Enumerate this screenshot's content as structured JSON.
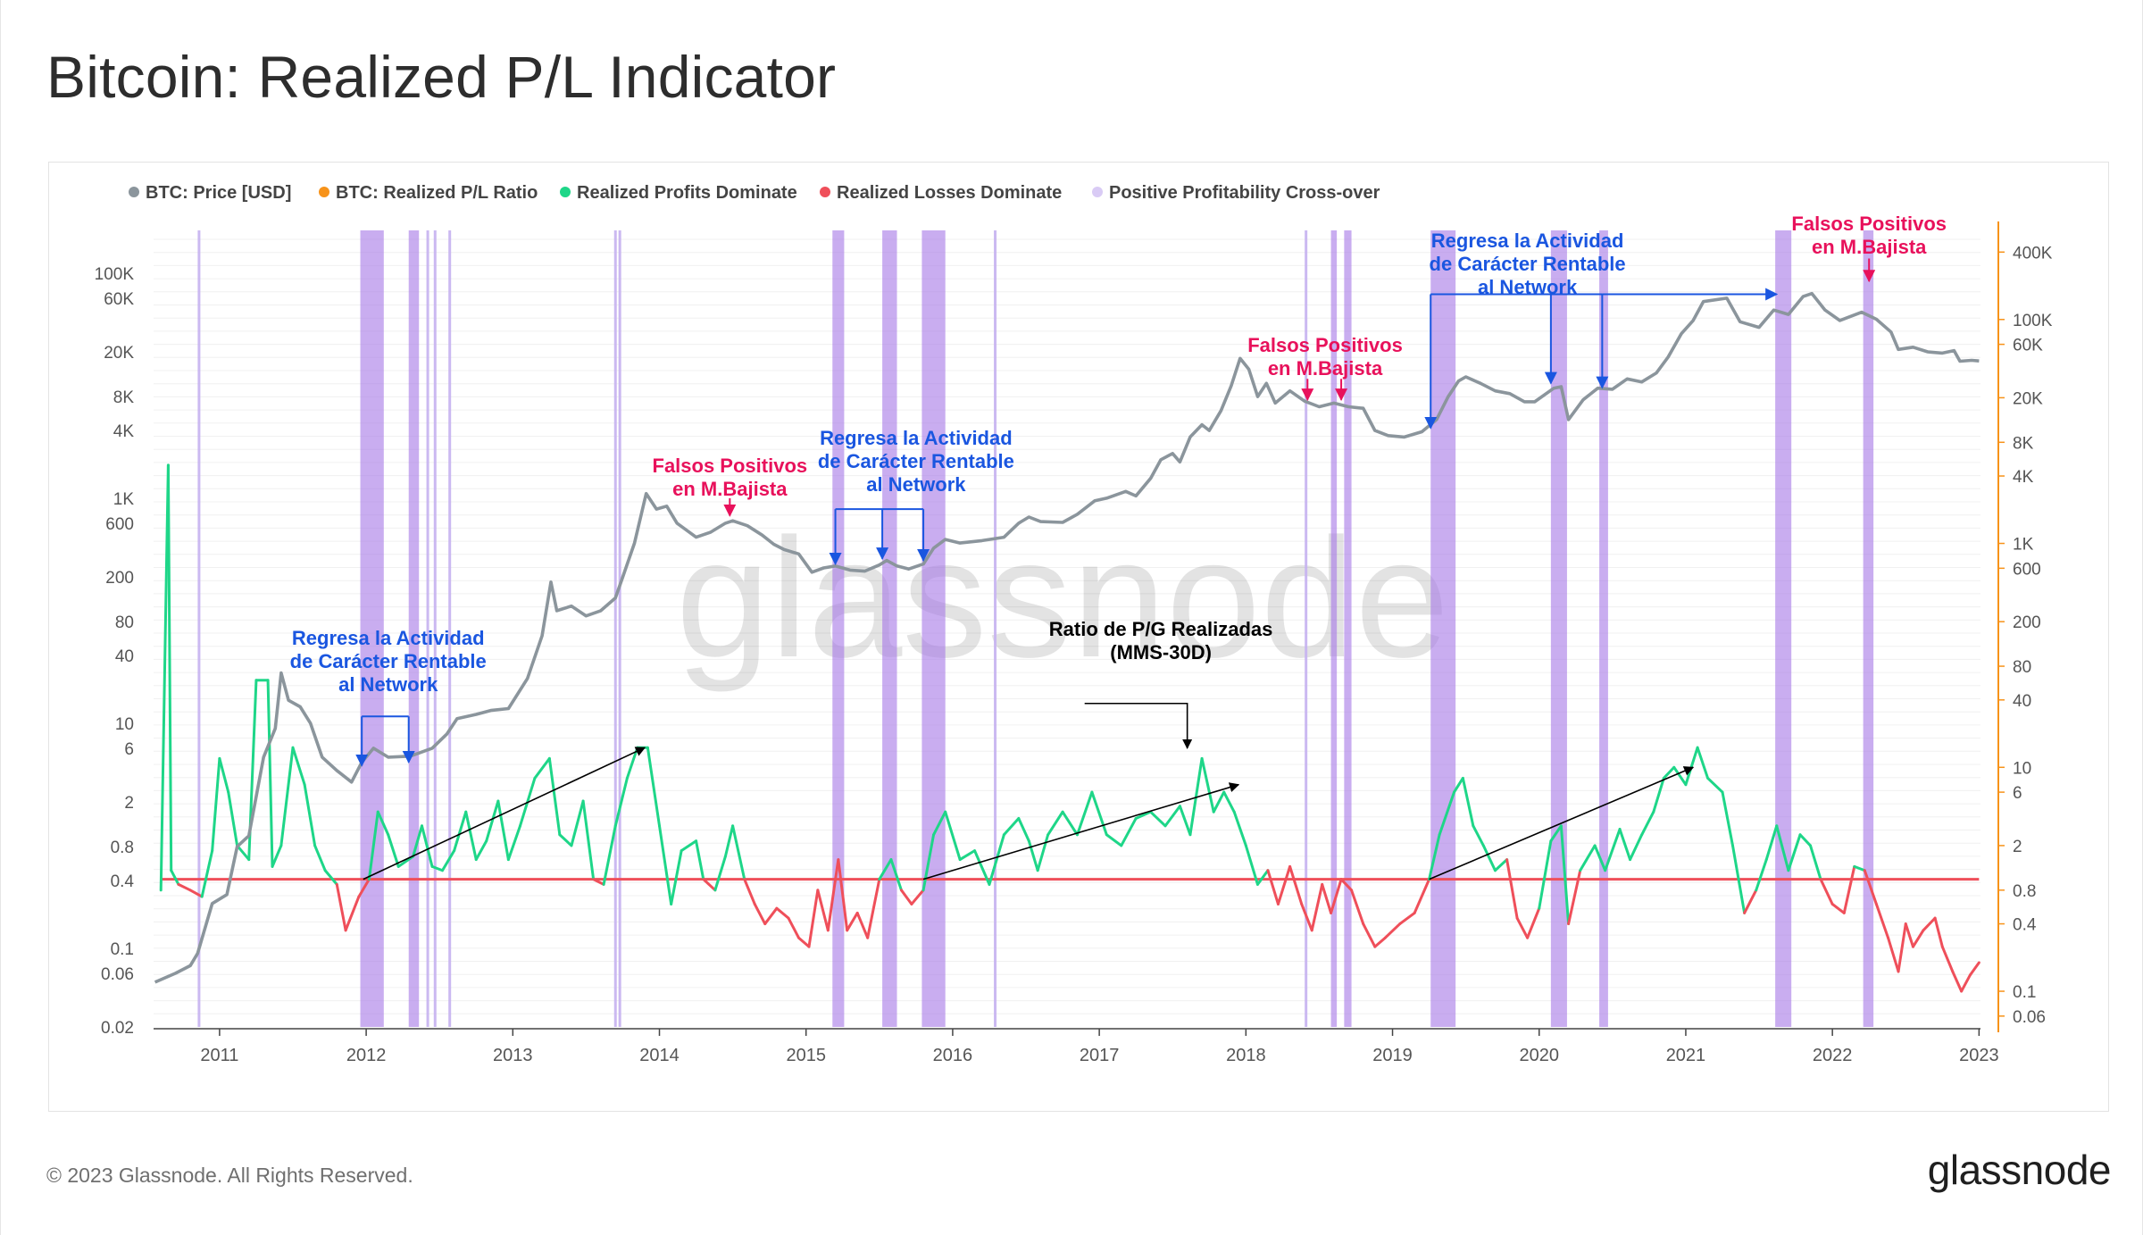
{
  "title": "Bitcoin: Realized P/L Indicator",
  "footer": {
    "copyright": "© 2023 Glassnode. All Rights Reserved.",
    "brand": "glassnode"
  },
  "watermark": "glassnode",
  "colors": {
    "price": "#8b959c",
    "ratio": "#f7931a",
    "profits": "#1ed688",
    "losses": "#ef4f5a",
    "crossover": "#c5b1f0",
    "crossover_band": "#a87be6",
    "breakeven": "#ef4f5a",
    "blue_note": "#1a56e0",
    "red_note": "#e8115b"
  },
  "chart_data": {
    "type": "line",
    "legend": [
      {
        "label": "BTC: Price [USD]",
        "color": "#8b959c"
      },
      {
        "label": "BTC: Realized P/L Ratio",
        "color": "#f7931a"
      },
      {
        "label": "Realized Profits Dominate",
        "color": "#1ed688"
      },
      {
        "label": "Realized Losses Dominate",
        "color": "#ef4f5a"
      },
      {
        "label": "Positive Profitability Cross-over",
        "color": "#d9cbf5"
      }
    ],
    "x_ticks": [
      "2011",
      "2012",
      "2013",
      "2014",
      "2015",
      "2016",
      "2017",
      "2018",
      "2019",
      "2020",
      "2021",
      "2022",
      "2023"
    ],
    "x_range": [
      2010.55,
      2023.01
    ],
    "left_axis": {
      "scale": "log",
      "range": [
        0.02,
        200000
      ],
      "ticks": [
        [
          "100K",
          100000
        ],
        [
          "60K",
          60000
        ],
        [
          "20K",
          20000
        ],
        [
          "8K",
          8000
        ],
        [
          "4K",
          4000
        ],
        [
          "1K",
          1000
        ],
        [
          "600",
          600
        ],
        [
          "200",
          200
        ],
        [
          "80",
          80
        ],
        [
          "40",
          40
        ],
        [
          "10",
          10
        ],
        [
          "6",
          6
        ],
        [
          "2",
          2
        ],
        [
          "0.8",
          0.8
        ],
        [
          "0.4",
          0.4
        ],
        [
          "0.1",
          0.1
        ],
        [
          "0.06",
          0.06
        ],
        [
          "0.02",
          0.02
        ]
      ]
    },
    "right_axis": {
      "scale": "log",
      "range": [
        0.048,
        520000
      ],
      "ticks": [
        [
          "400K",
          400000
        ],
        [
          "100K",
          100000
        ],
        [
          "60K",
          60000
        ],
        [
          "20K",
          20000
        ],
        [
          "8K",
          8000
        ],
        [
          "4K",
          4000
        ],
        [
          "1K",
          1000
        ],
        [
          "600",
          600
        ],
        [
          "200",
          200
        ],
        [
          "80",
          80
        ],
        [
          "40",
          40
        ],
        [
          "10",
          10
        ],
        [
          "6",
          6
        ],
        [
          "2",
          2
        ],
        [
          "0.8",
          0.8
        ],
        [
          "0.4",
          0.4
        ],
        [
          "0.1",
          0.1
        ],
        [
          "0.06",
          0.06
        ]
      ]
    },
    "breakeven_ratio": 1,
    "price_series": [
      [
        2010.56,
        0.05
      ],
      [
        2010.7,
        0.06
      ],
      [
        2010.8,
        0.07
      ],
      [
        2010.85,
        0.09
      ],
      [
        2010.95,
        0.25
      ],
      [
        2011.05,
        0.3
      ],
      [
        2011.12,
        0.8
      ],
      [
        2011.2,
        1
      ],
      [
        2011.3,
        5
      ],
      [
        2011.38,
        9
      ],
      [
        2011.42,
        28
      ],
      [
        2011.47,
        16
      ],
      [
        2011.55,
        14
      ],
      [
        2011.62,
        10
      ],
      [
        2011.7,
        5
      ],
      [
        2011.8,
        3.8
      ],
      [
        2011.9,
        3
      ],
      [
        2011.97,
        4.5
      ],
      [
        2012.05,
        6
      ],
      [
        2012.15,
        5
      ],
      [
        2012.3,
        5.1
      ],
      [
        2012.45,
        6
      ],
      [
        2012.55,
        8
      ],
      [
        2012.62,
        11
      ],
      [
        2012.75,
        12
      ],
      [
        2012.85,
        13
      ],
      [
        2012.97,
        13.5
      ],
      [
        2013.1,
        25
      ],
      [
        2013.2,
        60
      ],
      [
        2013.26,
        180
      ],
      [
        2013.3,
        100
      ],
      [
        2013.4,
        110
      ],
      [
        2013.5,
        90
      ],
      [
        2013.6,
        100
      ],
      [
        2013.7,
        130
      ],
      [
        2013.75,
        200
      ],
      [
        2013.83,
        400
      ],
      [
        2013.91,
        1100
      ],
      [
        2013.98,
        800
      ],
      [
        2014.05,
        850
      ],
      [
        2014.12,
        600
      ],
      [
        2014.25,
        450
      ],
      [
        2014.35,
        500
      ],
      [
        2014.45,
        600
      ],
      [
        2014.5,
        630
      ],
      [
        2014.6,
        570
      ],
      [
        2014.7,
        470
      ],
      [
        2014.78,
        390
      ],
      [
        2014.85,
        350
      ],
      [
        2014.95,
        320
      ],
      [
        2015.04,
        220
      ],
      [
        2015.12,
        240
      ],
      [
        2015.2,
        250
      ],
      [
        2015.3,
        230
      ],
      [
        2015.4,
        225
      ],
      [
        2015.5,
        255
      ],
      [
        2015.55,
        280
      ],
      [
        2015.62,
        250
      ],
      [
        2015.7,
        235
      ],
      [
        2015.8,
        260
      ],
      [
        2015.87,
        360
      ],
      [
        2015.95,
        430
      ],
      [
        2016.05,
        400
      ],
      [
        2016.2,
        420
      ],
      [
        2016.35,
        450
      ],
      [
        2016.45,
        600
      ],
      [
        2016.52,
        680
      ],
      [
        2016.6,
        620
      ],
      [
        2016.75,
        610
      ],
      [
        2016.85,
        720
      ],
      [
        2016.97,
        950
      ],
      [
        2017.05,
        1000
      ],
      [
        2017.18,
        1150
      ],
      [
        2017.25,
        1050
      ],
      [
        2017.35,
        1500
      ],
      [
        2017.42,
        2200
      ],
      [
        2017.5,
        2500
      ],
      [
        2017.55,
        2100
      ],
      [
        2017.62,
        3500
      ],
      [
        2017.7,
        4500
      ],
      [
        2017.75,
        4000
      ],
      [
        2017.83,
        6000
      ],
      [
        2017.9,
        10000
      ],
      [
        2017.96,
        17500
      ],
      [
        2018.02,
        14000
      ],
      [
        2018.08,
        8000
      ],
      [
        2018.14,
        10500
      ],
      [
        2018.2,
        7000
      ],
      [
        2018.3,
        9000
      ],
      [
        2018.4,
        7300
      ],
      [
        2018.5,
        6500
      ],
      [
        2018.6,
        7000
      ],
      [
        2018.7,
        6500
      ],
      [
        2018.8,
        6300
      ],
      [
        2018.88,
        4000
      ],
      [
        2018.97,
        3600
      ],
      [
        2019.08,
        3500
      ],
      [
        2019.2,
        3900
      ],
      [
        2019.3,
        5000
      ],
      [
        2019.38,
        8000
      ],
      [
        2019.45,
        11000
      ],
      [
        2019.5,
        12000
      ],
      [
        2019.6,
        10500
      ],
      [
        2019.7,
        9000
      ],
      [
        2019.8,
        8500
      ],
      [
        2019.9,
        7200
      ],
      [
        2019.97,
        7200
      ],
      [
        2020.1,
        9500
      ],
      [
        2020.15,
        9800
      ],
      [
        2020.2,
        5000
      ],
      [
        2020.3,
        7500
      ],
      [
        2020.4,
        9500
      ],
      [
        2020.5,
        9300
      ],
      [
        2020.6,
        11500
      ],
      [
        2020.7,
        10800
      ],
      [
        2020.8,
        13000
      ],
      [
        2020.88,
        18000
      ],
      [
        2020.97,
        29000
      ],
      [
        2021.05,
        38000
      ],
      [
        2021.12,
        56000
      ],
      [
        2021.28,
        60000
      ],
      [
        2021.37,
        37000
      ],
      [
        2021.5,
        33000
      ],
      [
        2021.6,
        47000
      ],
      [
        2021.7,
        43000
      ],
      [
        2021.8,
        62000
      ],
      [
        2021.86,
        66000
      ],
      [
        2021.95,
        47000
      ],
      [
        2022.05,
        38000
      ],
      [
        2022.2,
        45000
      ],
      [
        2022.3,
        39000
      ],
      [
        2022.4,
        30000
      ],
      [
        2022.45,
        21000
      ],
      [
        2022.55,
        22000
      ],
      [
        2022.65,
        20000
      ],
      [
        2022.75,
        19500
      ],
      [
        2022.83,
        20500
      ],
      [
        2022.87,
        16500
      ],
      [
        2022.95,
        16800
      ],
      [
        2023.0,
        16600
      ]
    ],
    "ratio_series": [
      [
        2010.6,
        0.8
      ],
      [
        2010.65,
        5000
      ],
      [
        2010.67,
        1.2
      ],
      [
        2010.72,
        0.9
      ],
      [
        2010.8,
        0.8
      ],
      [
        2010.88,
        0.7
      ],
      [
        2010.95,
        1.8
      ],
      [
        2011.0,
        12
      ],
      [
        2011.06,
        6
      ],
      [
        2011.12,
        2
      ],
      [
        2011.2,
        1.5
      ],
      [
        2011.25,
        60
      ],
      [
        2011.33,
        60
      ],
      [
        2011.36,
        1.3
      ],
      [
        2011.42,
        2
      ],
      [
        2011.5,
        15
      ],
      [
        2011.58,
        7
      ],
      [
        2011.65,
        2
      ],
      [
        2011.72,
        1.2
      ],
      [
        2011.8,
        0.9
      ],
      [
        2011.86,
        0.35
      ],
      [
        2011.95,
        0.7
      ],
      [
        2012.02,
        1.0
      ],
      [
        2012.08,
        4
      ],
      [
        2012.15,
        2.5
      ],
      [
        2012.22,
        1.3
      ],
      [
        2012.32,
        1.6
      ],
      [
        2012.38,
        3
      ],
      [
        2012.45,
        1.3
      ],
      [
        2012.52,
        1.2
      ],
      [
        2012.6,
        1.8
      ],
      [
        2012.68,
        4
      ],
      [
        2012.75,
        1.5
      ],
      [
        2012.82,
        2.2
      ],
      [
        2012.9,
        5
      ],
      [
        2012.97,
        1.5
      ],
      [
        2013.05,
        3
      ],
      [
        2013.15,
        8
      ],
      [
        2013.25,
        12
      ],
      [
        2013.32,
        2.5
      ],
      [
        2013.4,
        2
      ],
      [
        2013.48,
        5
      ],
      [
        2013.55,
        1.0
      ],
      [
        2013.62,
        0.9
      ],
      [
        2013.7,
        3
      ],
      [
        2013.78,
        8
      ],
      [
        2013.85,
        15
      ],
      [
        2013.92,
        15
      ],
      [
        2014.0,
        3
      ],
      [
        2014.08,
        0.6
      ],
      [
        2014.15,
        1.8
      ],
      [
        2014.25,
        2.2
      ],
      [
        2014.3,
        1.0
      ],
      [
        2014.38,
        0.8
      ],
      [
        2014.45,
        1.6
      ],
      [
        2014.5,
        3
      ],
      [
        2014.58,
        1.0
      ],
      [
        2014.65,
        0.6
      ],
      [
        2014.72,
        0.4
      ],
      [
        2014.8,
        0.55
      ],
      [
        2014.88,
        0.45
      ],
      [
        2014.95,
        0.3
      ],
      [
        2015.02,
        0.25
      ],
      [
        2015.08,
        0.8
      ],
      [
        2015.15,
        0.35
      ],
      [
        2015.22,
        1.5
      ],
      [
        2015.28,
        0.35
      ],
      [
        2015.35,
        0.5
      ],
      [
        2015.42,
        0.3
      ],
      [
        2015.5,
        1.0
      ],
      [
        2015.58,
        1.5
      ],
      [
        2015.65,
        0.8
      ],
      [
        2015.72,
        0.6
      ],
      [
        2015.8,
        0.8
      ],
      [
        2015.87,
        2.5
      ],
      [
        2015.95,
        4
      ],
      [
        2016.05,
        1.5
      ],
      [
        2016.15,
        1.8
      ],
      [
        2016.25,
        0.9
      ],
      [
        2016.35,
        2.5
      ],
      [
        2016.45,
        3.5
      ],
      [
        2016.52,
        2.2
      ],
      [
        2016.58,
        1.2
      ],
      [
        2016.65,
        2.5
      ],
      [
        2016.75,
        4
      ],
      [
        2016.85,
        2.5
      ],
      [
        2016.95,
        6
      ],
      [
        2017.05,
        2.5
      ],
      [
        2017.15,
        2
      ],
      [
        2017.25,
        3.5
      ],
      [
        2017.35,
        4
      ],
      [
        2017.45,
        3
      ],
      [
        2017.55,
        4.5
      ],
      [
        2017.62,
        2.5
      ],
      [
        2017.7,
        12
      ],
      [
        2017.78,
        4
      ],
      [
        2017.85,
        6
      ],
      [
        2017.92,
        4
      ],
      [
        2018.0,
        2.0
      ],
      [
        2018.08,
        0.9
      ],
      [
        2018.15,
        1.2
      ],
      [
        2018.22,
        0.6
      ],
      [
        2018.3,
        1.3
      ],
      [
        2018.38,
        0.6
      ],
      [
        2018.45,
        0.35
      ],
      [
        2018.52,
        0.9
      ],
      [
        2018.58,
        0.5
      ],
      [
        2018.65,
        1.0
      ],
      [
        2018.72,
        0.8
      ],
      [
        2018.8,
        0.4
      ],
      [
        2018.88,
        0.25
      ],
      [
        2018.95,
        0.3
      ],
      [
        2019.05,
        0.4
      ],
      [
        2019.15,
        0.5
      ],
      [
        2019.25,
        1.0
      ],
      [
        2019.32,
        2.5
      ],
      [
        2019.42,
        6
      ],
      [
        2019.48,
        8
      ],
      [
        2019.55,
        3
      ],
      [
        2019.62,
        2
      ],
      [
        2019.7,
        1.2
      ],
      [
        2019.78,
        1.5
      ],
      [
        2019.85,
        0.45
      ],
      [
        2019.92,
        0.3
      ],
      [
        2020.0,
        0.55
      ],
      [
        2020.08,
        2.2
      ],
      [
        2020.15,
        3
      ],
      [
        2020.2,
        0.4
      ],
      [
        2020.28,
        1.2
      ],
      [
        2020.38,
        2
      ],
      [
        2020.45,
        1.2
      ],
      [
        2020.55,
        2.8
      ],
      [
        2020.62,
        1.5
      ],
      [
        2020.7,
        2.5
      ],
      [
        2020.78,
        4
      ],
      [
        2020.85,
        8
      ],
      [
        2020.92,
        10
      ],
      [
        2021.0,
        7
      ],
      [
        2021.08,
        15
      ],
      [
        2021.15,
        8
      ],
      [
        2021.25,
        6
      ],
      [
        2021.32,
        2
      ],
      [
        2021.4,
        0.5
      ],
      [
        2021.48,
        0.8
      ],
      [
        2021.55,
        1.5
      ],
      [
        2021.62,
        3
      ],
      [
        2021.7,
        1.2
      ],
      [
        2021.78,
        2.5
      ],
      [
        2021.85,
        2
      ],
      [
        2021.92,
        1.0
      ],
      [
        2022.0,
        0.6
      ],
      [
        2022.08,
        0.5
      ],
      [
        2022.15,
        1.3
      ],
      [
        2022.22,
        1.2
      ],
      [
        2022.3,
        0.6
      ],
      [
        2022.38,
        0.3
      ],
      [
        2022.45,
        0.15
      ],
      [
        2022.5,
        0.4
      ],
      [
        2022.55,
        0.25
      ],
      [
        2022.62,
        0.35
      ],
      [
        2022.7,
        0.45
      ],
      [
        2022.75,
        0.25
      ],
      [
        2022.82,
        0.15
      ],
      [
        2022.88,
        0.1
      ],
      [
        2022.94,
        0.14
      ],
      [
        2023.0,
        0.18
      ]
    ],
    "crossover_bands": [
      [
        2011.96,
        2012.12
      ],
      [
        2012.29,
        2012.36
      ],
      [
        2015.18,
        2015.26
      ],
      [
        2015.52,
        2015.62
      ],
      [
        2015.79,
        2015.95
      ],
      [
        2019.26,
        2019.43
      ],
      [
        2020.08,
        2020.19
      ],
      [
        2020.41,
        2020.47
      ],
      [
        2021.61,
        2021.72
      ],
      [
        2022.21,
        2022.28
      ],
      [
        2018.58,
        2018.62
      ],
      [
        2018.67,
        2018.72
      ]
    ],
    "crossover_lines": [
      2010.86,
      2012.42,
      2012.47,
      2012.57,
      2013.7,
      2013.73,
      2016.29,
      2018.41
    ],
    "annotations": [
      {
        "lines": [
          "Regresa la Actividad",
          "de Carácter Rentable",
          "al Network"
        ],
        "color": "blue",
        "x": 2012.15,
        "y": 50
      },
      {
        "lines": [
          "Falsos Positivos",
          "en M.Bajista"
        ],
        "color": "red",
        "x": 2014.48,
        "y": 1700
      },
      {
        "lines": [
          "Regresa la Actividad",
          "de Carácter Rentable",
          "al Network"
        ],
        "color": "blue",
        "x": 2015.75,
        "y": 3000
      },
      {
        "lines": [
          "Falsos Positivos",
          "en M.Bajista"
        ],
        "color": "red",
        "x": 2018.54,
        "y": 20000
      },
      {
        "lines": [
          "Regresa la Actividad",
          "de Carácter Rentable",
          "al Network"
        ],
        "color": "blue",
        "x": 2019.92,
        "y": 170000
      },
      {
        "lines": [
          "Falsos Positivos",
          "en M.Bajista"
        ],
        "color": "red",
        "x": 2022.25,
        "y": 240000
      },
      {
        "lines": [
          "Ratio de P/G Realizadas",
          "(MMS-30D)"
        ],
        "color": "black",
        "x": 2017.42,
        "y": 60
      }
    ]
  }
}
